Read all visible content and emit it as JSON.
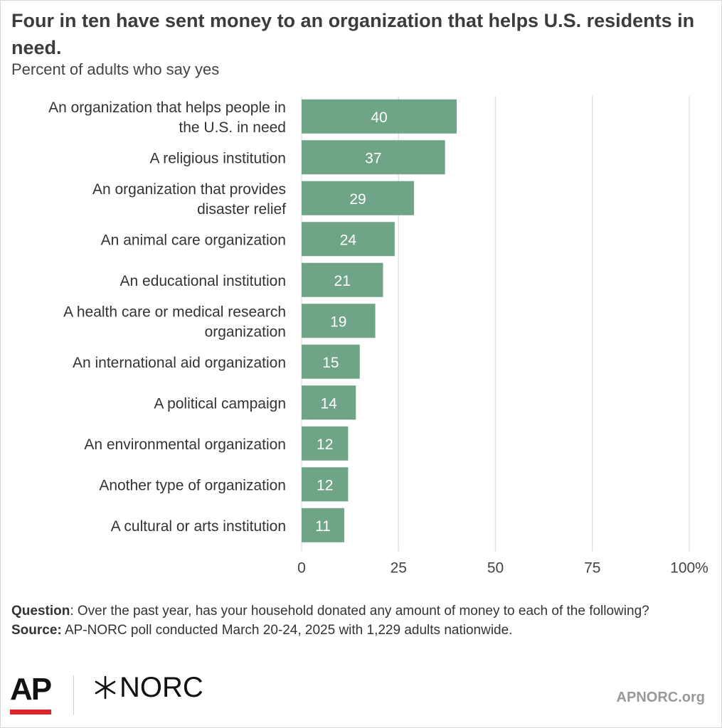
{
  "title": "Four in ten have sent money to an organization that helps U.S. residents in need.",
  "subtitle": "Percent of adults who say yes",
  "chart_data": {
    "type": "bar",
    "orientation": "horizontal",
    "categories": [
      [
        "An organization that helps people in",
        "the U.S. in need"
      ],
      [
        "A religious institution"
      ],
      [
        "An organization that provides",
        "disaster relief"
      ],
      [
        "An animal care organization"
      ],
      [
        "An educational institution"
      ],
      [
        "A health care or medical research",
        "organization"
      ],
      [
        "An international aid organization"
      ],
      [
        "A political campaign"
      ],
      [
        "An environmental organization"
      ],
      [
        "Another type of organization"
      ],
      [
        "A cultural or arts institution"
      ]
    ],
    "values": [
      40,
      37,
      29,
      24,
      21,
      19,
      15,
      14,
      12,
      12,
      11
    ],
    "xlim": [
      0,
      100
    ],
    "xticks": [
      0,
      25,
      50,
      75,
      100
    ],
    "xtick_labels": [
      "0",
      "25",
      "50",
      "75",
      "100%"
    ],
    "grid": true,
    "bar_color": "#6fa487",
    "label_color": "#ffffff",
    "grid_color": "#e3e3e3"
  },
  "notes": {
    "question_label": "Question",
    "question_text": ": Over the past year, has your household donated any amount of money to each of the following?",
    "source_label": "Source:",
    "source_text": " AP-NORC poll conducted March 20-24, 2025 with 1,229 adults nationwide."
  },
  "logos": {
    "ap": "AP",
    "norc": "NORC",
    "site": "APNORC.org",
    "ap_accent": "#e0242b"
  }
}
